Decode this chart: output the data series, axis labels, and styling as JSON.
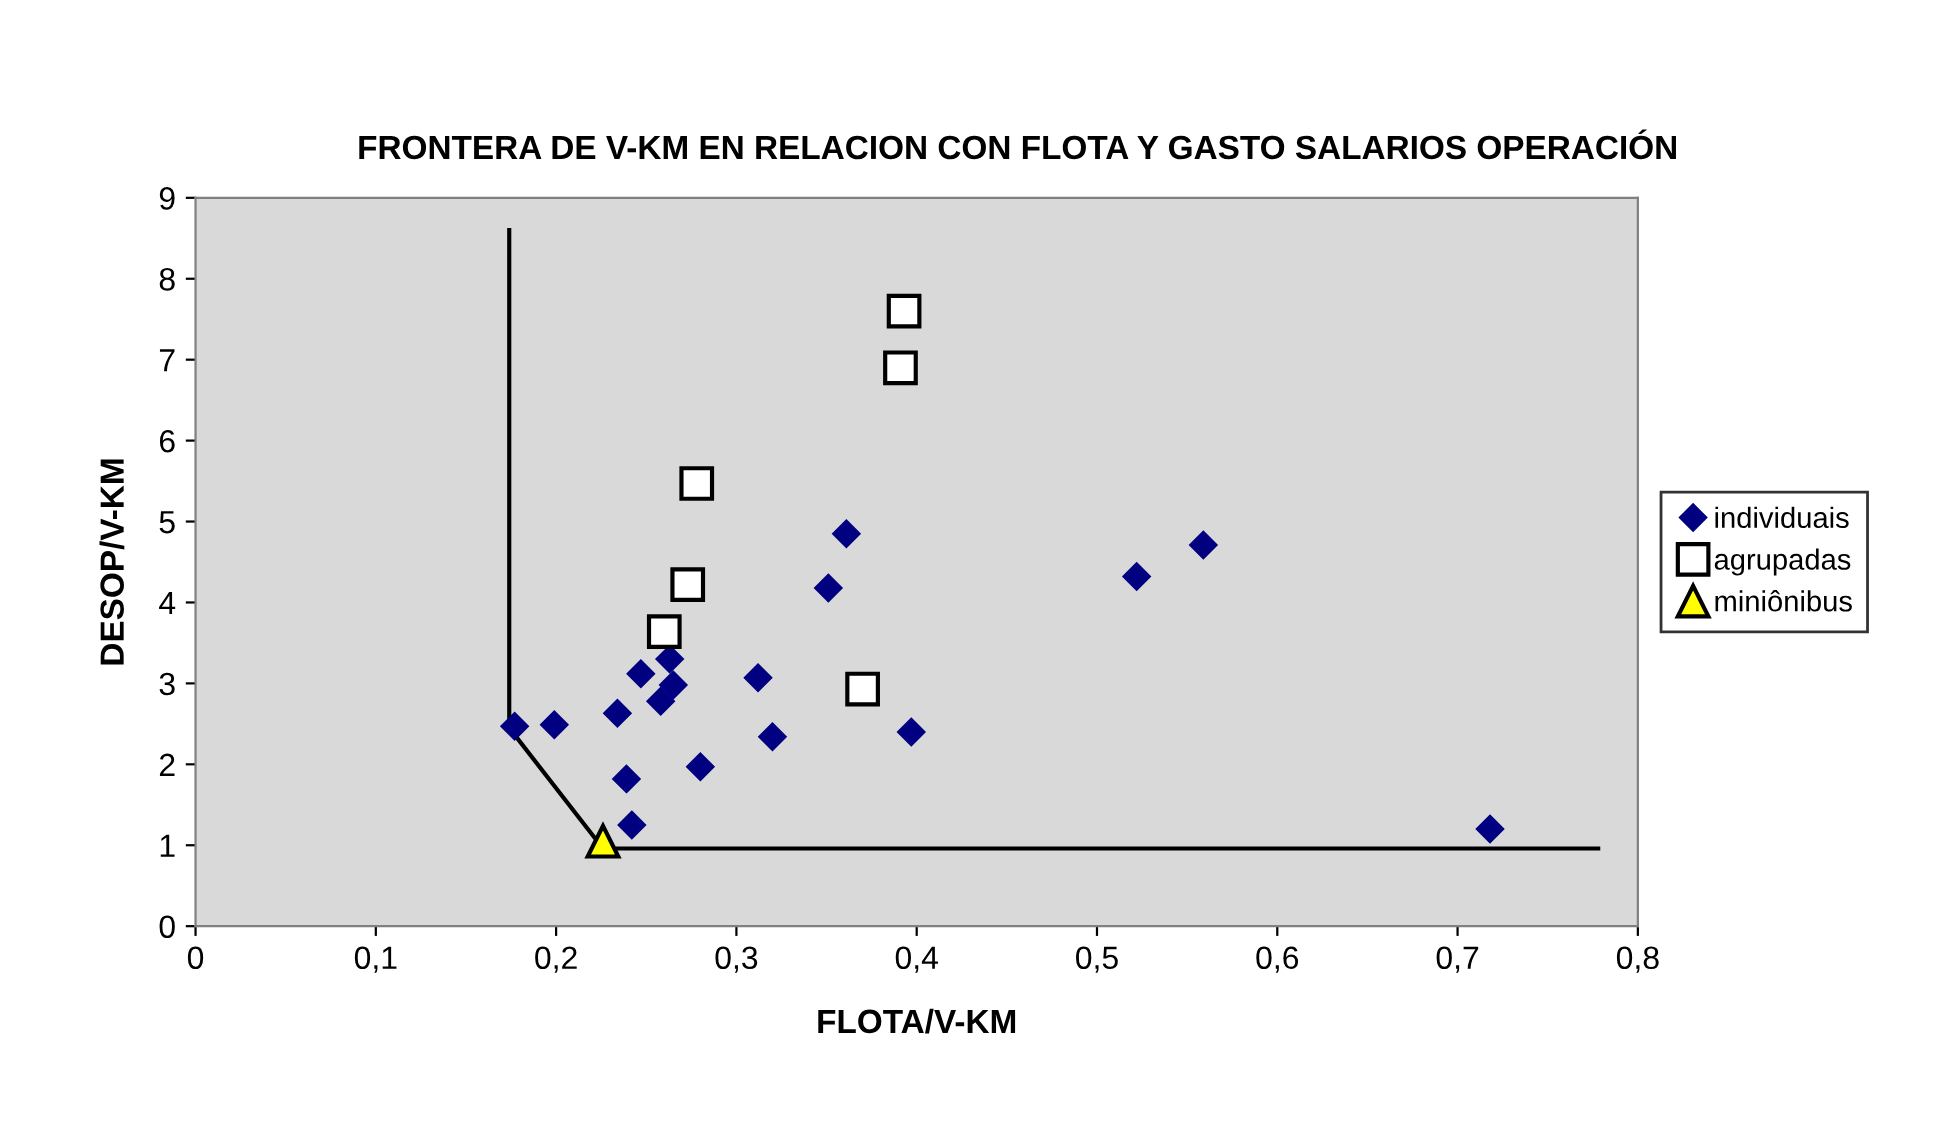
{
  "chart_data": {
    "type": "scatter",
    "title": "FRONTERA DE V-KM EN RELACION CON FLOTA Y GASTO SALARIOS OPERACIÓN",
    "xlabel": "FLOTA/V-KM",
    "ylabel": "DESOP/V-KM",
    "xlim": [
      0,
      0.8
    ],
    "ylim": [
      0,
      9
    ],
    "xticks": [
      {
        "value": 0,
        "label": "0"
      },
      {
        "value": 0.1,
        "label": "0,1"
      },
      {
        "value": 0.2,
        "label": "0,2"
      },
      {
        "value": 0.3,
        "label": "0,3"
      },
      {
        "value": 0.4,
        "label": "0,4"
      },
      {
        "value": 0.5,
        "label": "0,5"
      },
      {
        "value": 0.6,
        "label": "0,6"
      },
      {
        "value": 0.7,
        "label": "0,7"
      },
      {
        "value": 0.8,
        "label": "0,8"
      }
    ],
    "yticks": [
      0,
      1,
      2,
      3,
      4,
      5,
      6,
      7,
      8,
      9
    ],
    "grid": false,
    "legend": "right",
    "series": [
      {
        "name": "individuais",
        "color": "#000080",
        "marker": "diamond",
        "x": [
          0.177,
          0.199,
          0.234,
          0.247,
          0.263,
          0.265,
          0.258,
          0.239,
          0.242,
          0.28,
          0.312,
          0.32,
          0.351,
          0.361,
          0.397,
          0.522,
          0.559,
          0.718
        ],
        "values": [
          2.47,
          2.49,
          2.63,
          3.12,
          3.3,
          2.98,
          2.78,
          1.82,
          1.25,
          1.97,
          3.07,
          2.34,
          4.18,
          4.85,
          2.4,
          4.32,
          4.71,
          1.2
        ]
      },
      {
        "name": "agrupadas",
        "color": "#ffffff",
        "marker": "square",
        "x": [
          0.393,
          0.391,
          0.278,
          0.273,
          0.26,
          0.37
        ],
        "values": [
          7.6,
          6.9,
          5.47,
          4.22,
          3.64,
          2.93
        ]
      },
      {
        "name": "miniônibus",
        "color": "#ffff00",
        "marker": "triangle",
        "x": [
          0.226
        ],
        "values": [
          1.05
        ]
      },
      {
        "type": "line",
        "color": "#000000",
        "marker": "none",
        "x": [
          0.174,
          0.174,
          0.226,
          0.778
        ],
        "values": [
          8.6,
          2.45,
          0.96,
          0.96
        ]
      }
    ]
  }
}
